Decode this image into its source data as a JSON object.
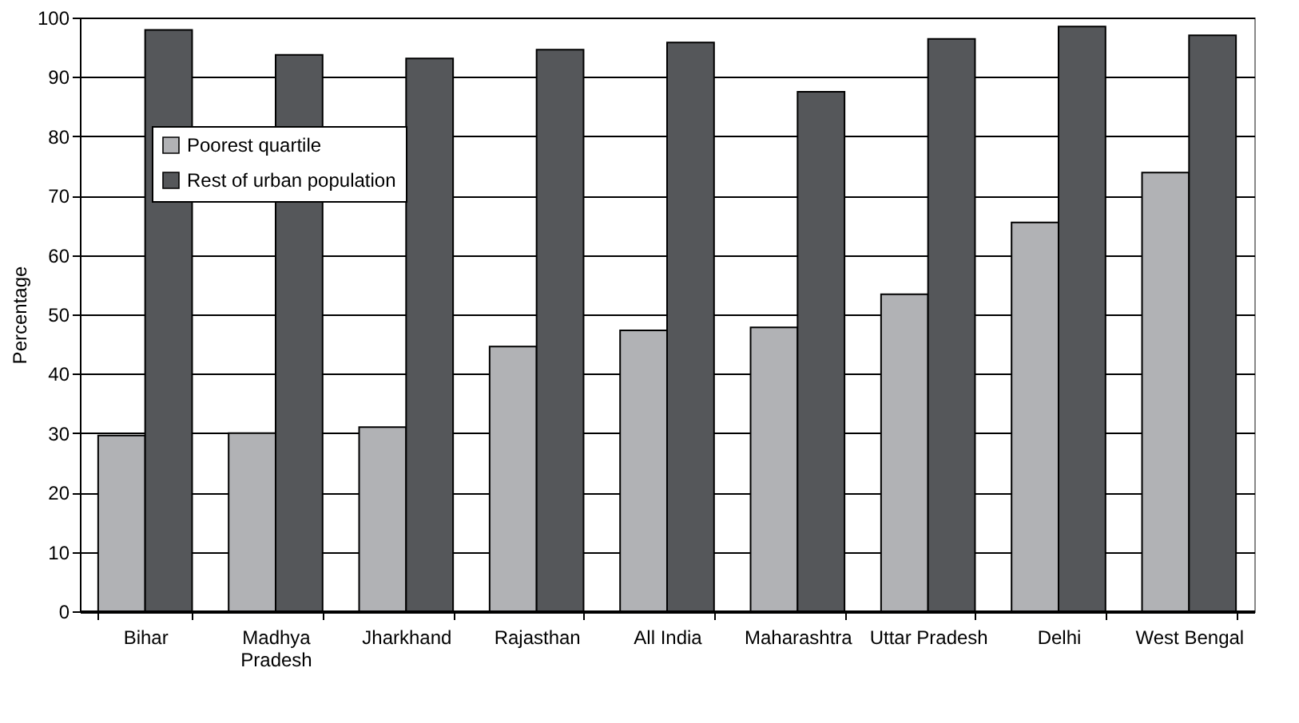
{
  "chart_data": {
    "type": "bar",
    "ylabel": "Percentage",
    "categories": [
      "Bihar",
      "Madhya Pradesh",
      "Jharkhand",
      "Rajasthan",
      "All India",
      "Maharashtra",
      "Uttar Pradesh",
      "Delhi",
      "West Bengal"
    ],
    "series": [
      {
        "name": "Poorest quartile",
        "color": "#b1b2b5",
        "values": [
          29.6,
          30.0,
          31.0,
          44.6,
          47.3,
          47.8,
          53.4,
          65.5,
          73.9
        ]
      },
      {
        "name": "Rest of urban population",
        "color": "#55575a",
        "values": [
          97.9,
          93.7,
          93.1,
          94.6,
          95.8,
          87.5,
          96.4,
          98.5,
          97.0
        ]
      }
    ],
    "ylim": [
      0,
      100
    ],
    "yticks": [
      0,
      10,
      20,
      30,
      40,
      50,
      60,
      70,
      80,
      90,
      100
    ],
    "grid": "y",
    "legend": "top left"
  }
}
